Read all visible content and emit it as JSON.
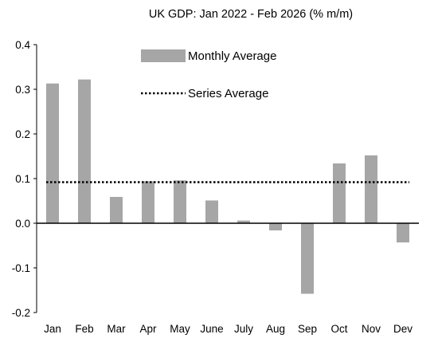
{
  "chart_data": {
    "type": "bar",
    "title": "UK GDP: Jan 2022 - Feb 2026 (% m/m)",
    "categories": [
      "Jan",
      "Feb",
      "Mar",
      "Apr",
      "May",
      "June",
      "July",
      "Aug",
      "Sep",
      "Oct",
      "Nov",
      "Dev"
    ],
    "series": [
      {
        "name": "Monthly Average",
        "values": [
          0.313,
          0.322,
          0.059,
          0.094,
          0.096,
          0.051,
          0.006,
          -0.016,
          -0.158,
          0.134,
          0.152,
          -0.043
        ],
        "color": "#a6a6a6"
      }
    ],
    "reference_line": {
      "name": "Series Average",
      "value": 0.092,
      "style": "dotted",
      "color": "#000000"
    },
    "ylim": [
      -0.2,
      0.4
    ],
    "yticks": [
      0.4,
      0.3,
      0.2,
      0.1,
      0.0,
      -0.1,
      -0.2
    ],
    "ytick_labels": [
      "0.4",
      "0.3",
      "0.2",
      "0.1",
      "0.0",
      "-0.1",
      "-0.2"
    ],
    "xlabel": "",
    "ylabel": "",
    "grid": false,
    "legend_position": "top-center"
  }
}
